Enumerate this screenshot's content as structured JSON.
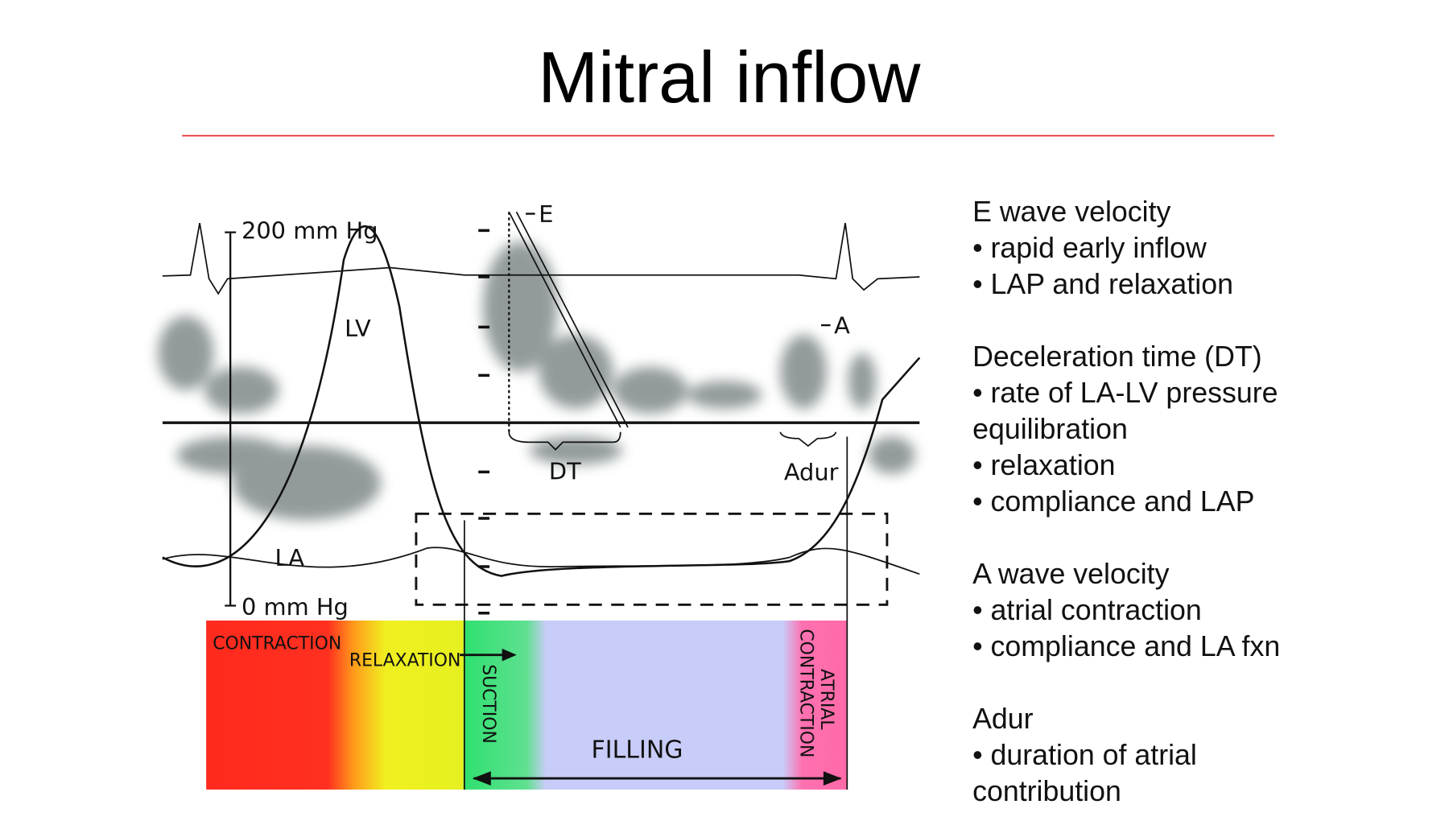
{
  "title": "Mitral inflow",
  "diagram": {
    "scale_top": "200 mm Hg",
    "scale_bottom": "0 mm Hg",
    "lv": "LV",
    "la": "LA",
    "e": "E",
    "a": "A",
    "dt": "DT",
    "adur": "Adur",
    "phases": {
      "contraction": "CONTRACTION",
      "relaxation": "RELAXATION",
      "suction": "SUCTION",
      "filling": "FILLING",
      "atrial_contraction": [
        "ATRIAL",
        "CONTRACTION"
      ]
    }
  },
  "notes": [
    {
      "heading": "E wave velocity",
      "lines": [
        "• rapid early inflow",
        "• LAP and relaxation"
      ]
    },
    {
      "heading": "Deceleration time (DT)",
      "lines": [
        "• rate of LA-LV pressure",
        "equilibration",
        "• relaxation",
        "• compliance and LAP"
      ]
    },
    {
      "heading": "A wave velocity",
      "lines": [
        "• atrial contraction",
        "• compliance and LA fxn"
      ]
    },
    {
      "heading": "Adur",
      "lines": [
        "• duration of atrial",
        "contribution"
      ]
    }
  ]
}
